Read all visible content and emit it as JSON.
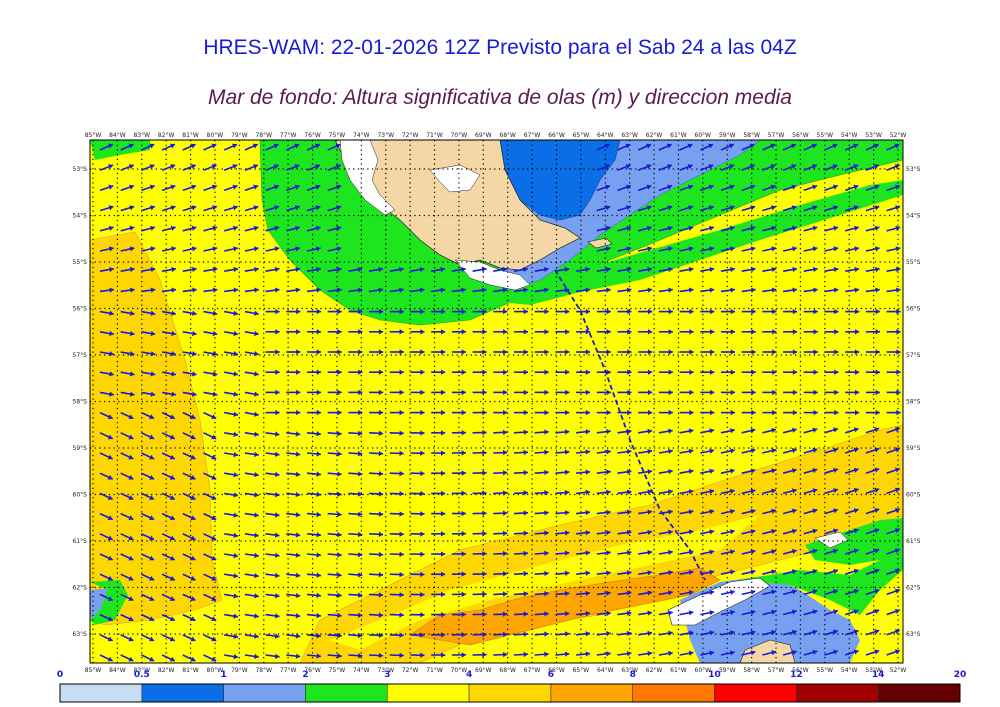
{
  "title": "HRES-WAM: 22-01-2026 12Z Previsto para el Sab 24 a las 04Z",
  "subtitle": "Mar de fondo: Altura significativa de olas (m) y direccion media",
  "longitudes": [
    "85°W",
    "84°W",
    "83°W",
    "82°W",
    "81°W",
    "80°W",
    "79°W",
    "78°W",
    "77°W",
    "76°W",
    "75°W",
    "74°W",
    "73°W",
    "72°W",
    "71°W",
    "70°W",
    "69°W",
    "68°W",
    "67°W",
    "66°W",
    "65°W",
    "64°W",
    "63°W",
    "62°W",
    "61°W",
    "60°W",
    "59°W",
    "58°W",
    "57°W",
    "56°W",
    "55°W",
    "54°W",
    "53°W",
    "52°W"
  ],
  "latitudes": [
    "53°S",
    "54°S",
    "55°S",
    "56°S",
    "57°S",
    "58°S",
    "59°S",
    "60°S",
    "61°S",
    "62°S",
    "63°S"
  ],
  "colorbar": {
    "labels": [
      "0",
      "0.5",
      "1",
      "2",
      "3",
      "4",
      "6",
      "8",
      "10",
      "12",
      "14",
      "20"
    ],
    "colors": [
      "#c8dcf5",
      "#0a6ee6",
      "#78a0f0",
      "#1ee61e",
      "#ffff00",
      "#ffd700",
      "#ffa500",
      "#ff7800",
      "#ff0000",
      "#a00000",
      "#640000",
      "#323232"
    ]
  },
  "colors": {
    "land": "#f5d7a5",
    "sea_lightblue": "#78a0f0",
    "sea_blue": "#0a6ee6",
    "sea_green": "#1ee61e",
    "sea_yellow": "#ffff00",
    "sea_gold": "#ffd700",
    "sea_orange": "#ffa500",
    "arrow": "#1a1ad4"
  }
}
